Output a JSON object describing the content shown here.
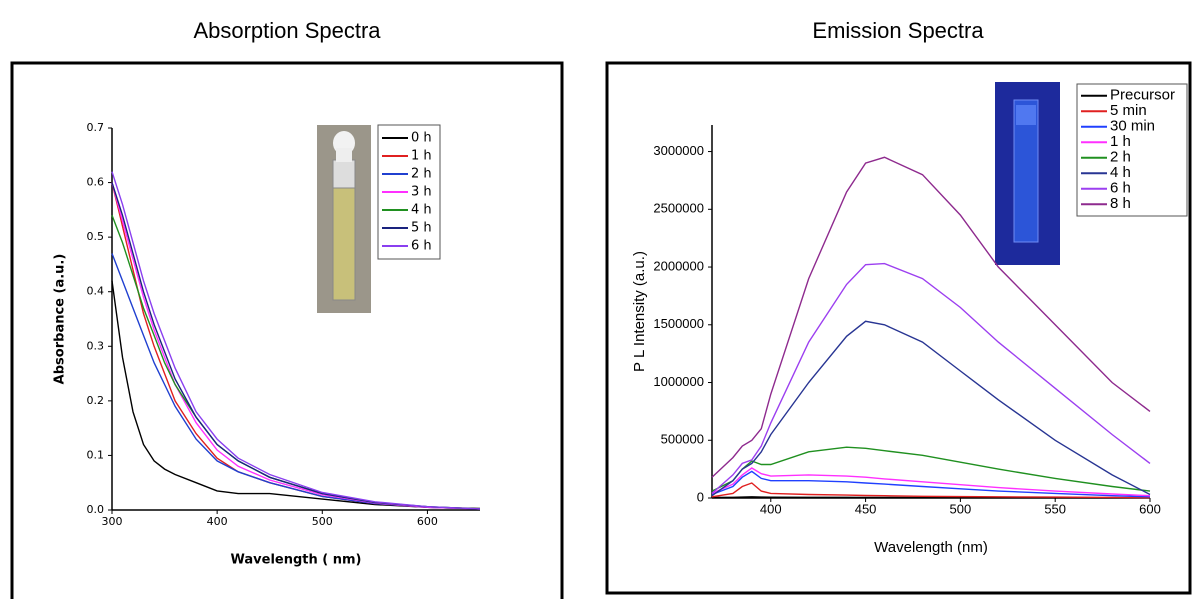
{
  "chart_data": [
    {
      "type": "line",
      "title": "Absorption Spectra",
      "xlabel": "Wavelength ( nm)",
      "ylabel": "Absorbance (a.u.)",
      "xlim": [
        300,
        650
      ],
      "xticks": [
        300,
        400,
        500,
        600
      ],
      "ylim": [
        0,
        0.7
      ],
      "yticks": [
        {
          "value": 0,
          "label": "0.0"
        },
        0.1,
        0.2,
        0.3,
        0.4,
        0.5,
        0.6,
        0.7
      ],
      "legend": "upper right",
      "x": [
        300,
        310,
        320,
        330,
        340,
        350,
        360,
        380,
        400,
        420,
        450,
        500,
        550,
        600,
        650
      ],
      "series": [
        {
          "name": "0 h",
          "color": "#000000",
          "values": [
            0.42,
            0.28,
            0.18,
            0.12,
            0.09,
            0.075,
            0.065,
            0.05,
            0.035,
            0.03,
            0.03,
            0.02,
            0.01,
            0.005,
            0.003
          ]
        },
        {
          "name": "1 h",
          "color": "#e02020",
          "values": [
            0.6,
            0.52,
            0.44,
            0.36,
            0.3,
            0.25,
            0.2,
            0.14,
            0.095,
            0.07,
            0.05,
            0.025,
            0.012,
            0.005,
            0.002
          ]
        },
        {
          "name": "2 h",
          "color": "#2040d0",
          "values": [
            0.47,
            0.42,
            0.37,
            0.32,
            0.27,
            0.23,
            0.19,
            0.13,
            0.09,
            0.07,
            0.05,
            0.025,
            0.012,
            0.005,
            0.002
          ]
        },
        {
          "name": "3 h",
          "color": "#ff30ff",
          "values": [
            0.6,
            0.53,
            0.46,
            0.39,
            0.33,
            0.28,
            0.23,
            0.16,
            0.11,
            0.08,
            0.055,
            0.028,
            0.013,
            0.005,
            0.002
          ]
        },
        {
          "name": "4 h",
          "color": "#209020",
          "values": [
            0.54,
            0.49,
            0.43,
            0.37,
            0.32,
            0.27,
            0.23,
            0.17,
            0.12,
            0.09,
            0.06,
            0.03,
            0.014,
            0.006,
            0.002
          ]
        },
        {
          "name": "5 h",
          "color": "#1a237e",
          "values": [
            0.6,
            0.54,
            0.47,
            0.4,
            0.34,
            0.29,
            0.24,
            0.17,
            0.12,
            0.09,
            0.06,
            0.03,
            0.014,
            0.006,
            0.002
          ]
        },
        {
          "name": "6 h",
          "color": "#8a3ff0",
          "values": [
            0.62,
            0.56,
            0.49,
            0.42,
            0.36,
            0.31,
            0.26,
            0.18,
            0.13,
            0.095,
            0.065,
            0.032,
            0.015,
            0.006,
            0.002
          ]
        }
      ]
    },
    {
      "type": "line",
      "title": "Emission Spectra",
      "xlabel": "Wavelength (nm)",
      "ylabel": "P L Intensity (a.u.)",
      "xlim": [
        369,
        600
      ],
      "xticks": [
        400,
        450,
        500,
        550,
        600
      ],
      "ylim": [
        0,
        3230000
      ],
      "yticks": [
        0,
        500000,
        1000000,
        1500000,
        2000000,
        2500000,
        3000000
      ],
      "legend": "upper right",
      "x": [
        369,
        380,
        385,
        390,
        395,
        400,
        420,
        440,
        450,
        460,
        480,
        500,
        520,
        550,
        580,
        600
      ],
      "series": [
        {
          "name": "Precursor",
          "color": "#000000",
          "values": [
            5000,
            6000,
            8000,
            10000,
            8000,
            7000,
            6000,
            6000,
            5000,
            5000,
            5000,
            4000,
            4000,
            3000,
            3000,
            2000
          ]
        },
        {
          "name": "5 min",
          "color": "#e02020",
          "values": [
            10000,
            40000,
            100000,
            130000,
            60000,
            40000,
            30000,
            25000,
            22000,
            20000,
            15000,
            12000,
            10000,
            8000,
            5000,
            3000
          ]
        },
        {
          "name": "30 min",
          "color": "#2040ff",
          "values": [
            30000,
            100000,
            180000,
            230000,
            170000,
            150000,
            150000,
            140000,
            130000,
            120000,
            100000,
            80000,
            60000,
            40000,
            20000,
            10000
          ]
        },
        {
          "name": "1 h",
          "color": "#ff30ff",
          "values": [
            40000,
            120000,
            200000,
            260000,
            210000,
            190000,
            200000,
            190000,
            180000,
            165000,
            140000,
            115000,
            90000,
            60000,
            35000,
            20000
          ]
        },
        {
          "name": "2 h",
          "color": "#209020",
          "values": [
            60000,
            150000,
            250000,
            320000,
            290000,
            290000,
            400000,
            440000,
            430000,
            410000,
            370000,
            310000,
            250000,
            170000,
            100000,
            60000
          ]
        },
        {
          "name": "4 h",
          "color": "#283593",
          "values": [
            20000,
            150000,
            250000,
            300000,
            400000,
            550000,
            1000000,
            1400000,
            1530000,
            1500000,
            1350000,
            1100000,
            850000,
            500000,
            200000,
            30000
          ]
        },
        {
          "name": "6 h",
          "color": "#9c3ff0",
          "values": [
            40000,
            200000,
            300000,
            330000,
            450000,
            650000,
            1350000,
            1850000,
            2020000,
            2030000,
            1900000,
            1650000,
            1350000,
            950000,
            550000,
            300000
          ]
        },
        {
          "name": "8 h",
          "color": "#8e2a8e",
          "values": [
            180000,
            350000,
            450000,
            500000,
            600000,
            900000,
            1900000,
            2650000,
            2900000,
            2950000,
            2800000,
            2450000,
            2000000,
            1500000,
            1000000,
            750000
          ]
        }
      ]
    }
  ]
}
